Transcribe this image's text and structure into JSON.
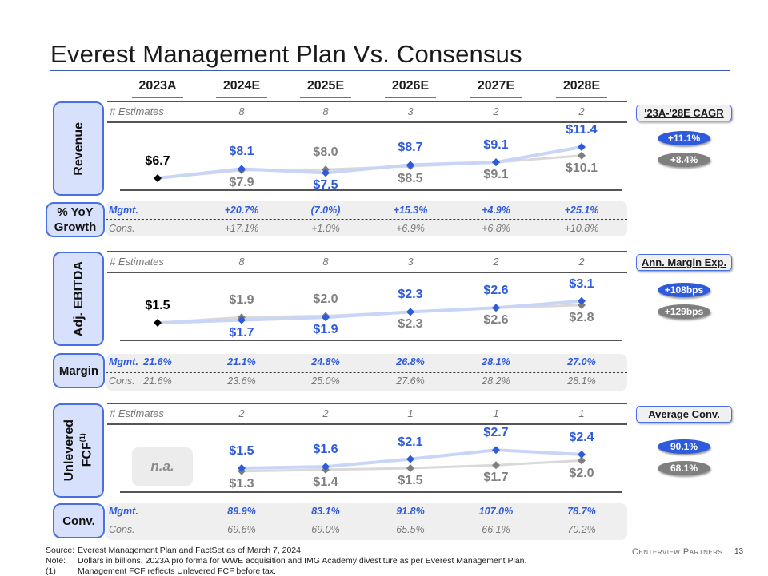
{
  "title": "Everest Management Plan Vs. Consensus",
  "years": [
    "2023A",
    "2024E",
    "2025E",
    "2026E",
    "2027E",
    "2028E"
  ],
  "colors": {
    "mgmt": "#2e5bdb",
    "cons": "#7f7f7f",
    "actual": "#000000",
    "mgmt_line": "#c9d5f6",
    "cons_line": "#d9d9d9",
    "label_box": "#d7e1fb"
  },
  "revenue": {
    "label": "Revenue",
    "estimates_label": "# Estimates",
    "estimates": [
      "8",
      "8",
      "3",
      "2",
      "2"
    ],
    "side": {
      "title": "'23A-'28E CAGR",
      "mgmt": "+11.1%",
      "cons": "+8.4%"
    }
  },
  "growth": {
    "label_line1": "% YoY",
    "label_line2": "Growth",
    "mgmt_label": "Mgmt.",
    "cons_label": "Cons.",
    "mgmt": [
      "+20.7%",
      "(7.0%)",
      "+15.3%",
      "+4.9%",
      "+25.1%"
    ],
    "cons": [
      "+17.1%",
      "+1.0%",
      "+6.9%",
      "+6.8%",
      "+10.8%"
    ]
  },
  "ebitda": {
    "label": "Adj. EBITDA",
    "estimates_label": "# Estimates",
    "estimates": [
      "8",
      "8",
      "3",
      "2",
      "2"
    ],
    "side": {
      "title": "Ann. Margin Exp.",
      "mgmt": "+108bps",
      "cons": "+129bps"
    }
  },
  "margin": {
    "label": "Margin",
    "mgmt_label": "Mgmt.",
    "cons_label": "Cons.",
    "mgmt": [
      "21.6%",
      "21.1%",
      "24.8%",
      "26.8%",
      "28.1%",
      "27.0%"
    ],
    "cons": [
      "21.6%",
      "23.6%",
      "25.0%",
      "27.6%",
      "28.2%",
      "28.1%"
    ]
  },
  "fcf": {
    "label_line1": "Unlevered",
    "label_line2": "FCF",
    "label_sup": "(1)",
    "estimates_label": "# Estimates",
    "estimates": [
      "2",
      "2",
      "1",
      "1",
      "1"
    ],
    "na": "n.a.",
    "side": {
      "title": "Average Conv.",
      "mgmt": "90.1%",
      "cons": "68.1%"
    }
  },
  "conv": {
    "label": "Conv.",
    "mgmt_label": "Mgmt.",
    "cons_label": "Cons.",
    "mgmt": [
      "89.9%",
      "83.1%",
      "91.8%",
      "107.0%",
      "78.7%"
    ],
    "cons": [
      "69.6%",
      "69.0%",
      "65.5%",
      "66.1%",
      "70.2%"
    ]
  },
  "chart_data": [
    {
      "type": "line",
      "title": "Revenue",
      "categories": [
        "2023A",
        "2024E",
        "2025E",
        "2026E",
        "2027E",
        "2028E"
      ],
      "series": [
        {
          "name": "Mgmt.",
          "values": [
            6.7,
            8.1,
            7.5,
            8.7,
            9.1,
            11.4
          ],
          "labels": [
            "$6.7",
            "$8.1",
            "$7.5",
            "$8.7",
            "$9.1",
            "$11.4"
          ]
        },
        {
          "name": "Cons.",
          "values": [
            null,
            7.9,
            8.0,
            8.5,
            9.1,
            10.1
          ],
          "labels": [
            null,
            "$7.9",
            "$8.0",
            "$8.5",
            "$9.1",
            "$10.1"
          ]
        }
      ]
    },
    {
      "type": "line",
      "title": "Adj. EBITDA",
      "categories": [
        "2023A",
        "2024E",
        "2025E",
        "2026E",
        "2027E",
        "2028E"
      ],
      "series": [
        {
          "name": "Mgmt.",
          "values": [
            1.5,
            1.7,
            1.9,
            2.3,
            2.6,
            3.1
          ],
          "labels": [
            "$1.5",
            "$1.7",
            "$1.9",
            "$2.3",
            "$2.6",
            "$3.1"
          ]
        },
        {
          "name": "Cons.",
          "values": [
            null,
            1.9,
            2.0,
            2.3,
            2.6,
            2.8
          ],
          "labels": [
            null,
            "$1.9",
            "$2.0",
            "$2.3",
            "$2.6",
            "$2.8"
          ]
        }
      ]
    },
    {
      "type": "line",
      "title": "Unlevered FCF",
      "categories": [
        "2023A",
        "2024E",
        "2025E",
        "2026E",
        "2027E",
        "2028E"
      ],
      "series": [
        {
          "name": "Mgmt.",
          "values": [
            null,
            1.5,
            1.6,
            2.1,
            2.7,
            2.4
          ],
          "labels": [
            null,
            "$1.5",
            "$1.6",
            "$2.1",
            "$2.7",
            "$2.4"
          ]
        },
        {
          "name": "Cons.",
          "values": [
            null,
            1.3,
            1.4,
            1.5,
            1.7,
            2.0
          ],
          "labels": [
            null,
            "$1.3",
            "$1.4",
            "$1.5",
            "$1.7",
            "$2.0"
          ]
        }
      ]
    }
  ],
  "footer": {
    "source_key": "Source:",
    "source": "Everest Management Plan and FactSet as of March 7, 2024.",
    "note_key": "Note:",
    "note": "Dollars in billions. 2023A pro forma for WWE acquisition and IMG Academy divestiture as per Everest Management Plan.",
    "fn_key": "(1)",
    "fn": "Management FCF reflects Unlevered FCF before tax.",
    "logo": "Centerview Partners",
    "page": "13"
  }
}
